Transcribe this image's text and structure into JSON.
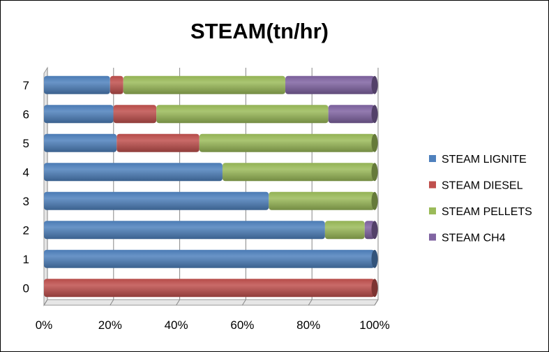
{
  "chart_data": {
    "type": "bar",
    "orientation": "horizontal",
    "stacking": "percent",
    "title": "STEAM(tn/hr)",
    "xlabel": "",
    "ylabel": "",
    "categories": [
      "0",
      "1",
      "2",
      "3",
      "4",
      "5",
      "6",
      "7"
    ],
    "x_ticks": [
      "0%",
      "20%",
      "40%",
      "60%",
      "80%",
      "100%"
    ],
    "xlim": [
      0,
      100
    ],
    "grid": true,
    "legend_position": "right",
    "series": [
      {
        "name": "STEAM LIGNITE",
        "color": "#4F81BD",
        "values": [
          0,
          100,
          85,
          68,
          54,
          22,
          21,
          20
        ]
      },
      {
        "name": "STEAM DIESEL",
        "color": "#C0504D",
        "values": [
          100,
          0,
          0,
          0,
          0,
          25,
          13,
          4
        ]
      },
      {
        "name": "STEAM PELLETS",
        "color": "#9BBB59",
        "values": [
          0,
          0,
          12,
          32,
          46,
          53,
          52,
          49
        ]
      },
      {
        "name": "STEAM CH4",
        "color": "#8064A2",
        "values": [
          0,
          0,
          3,
          0,
          0,
          0,
          14,
          27
        ]
      }
    ]
  }
}
